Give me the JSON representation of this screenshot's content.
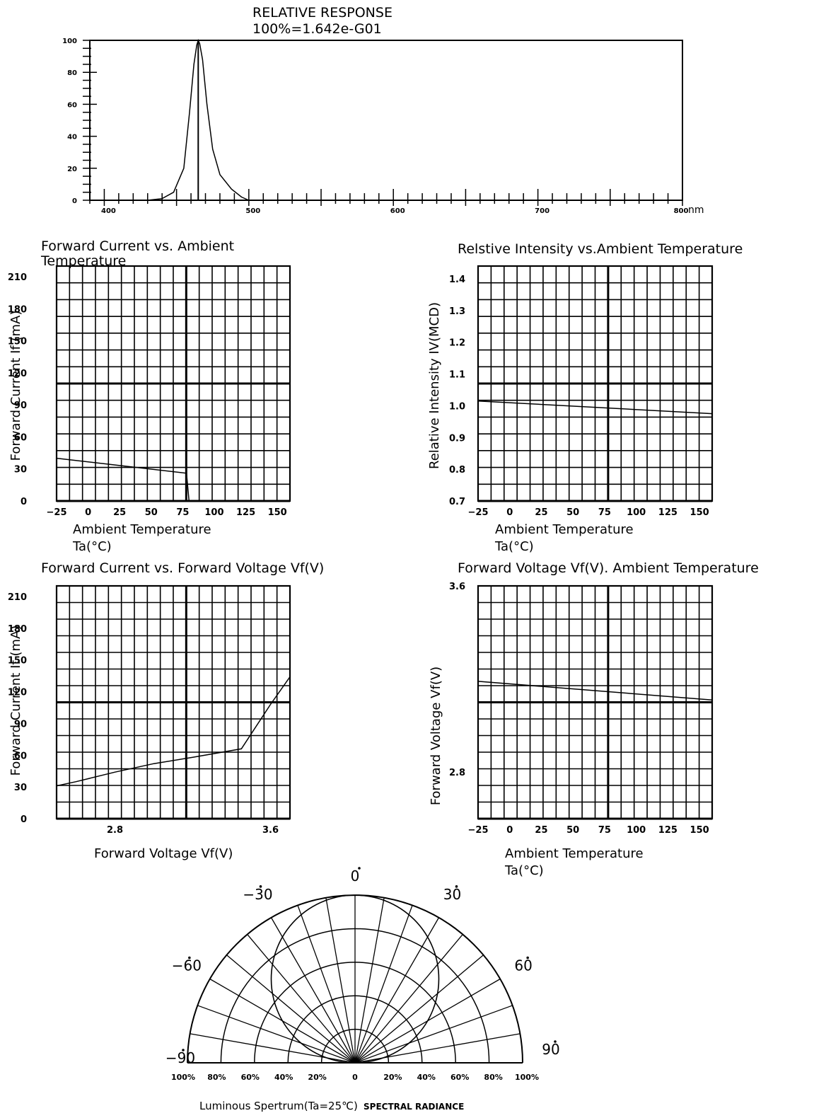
{
  "chart_data": [
    {
      "id": "spectrum",
      "type": "line",
      "title": "RELATIVE RESPONSE",
      "subtitle": "100%=1.642e-G01",
      "xunit": "nm",
      "xlim": [
        390,
        800
      ],
      "ylim": [
        0,
        100
      ],
      "xticks": [
        "400",
        "500",
        "600",
        "700",
        "800"
      ],
      "yticks": [
        "0",
        "20",
        "40",
        "60",
        "80",
        "100"
      ],
      "peak_x": 465,
      "series": [
        {
          "x": [
            430,
            440,
            448,
            455,
            459,
            462,
            464,
            465,
            466,
            468,
            471,
            475,
            480,
            488,
            495,
            500
          ],
          "y": [
            0,
            1,
            5,
            20,
            55,
            85,
            97,
            100,
            98,
            88,
            60,
            32,
            16,
            7,
            2,
            0
          ]
        }
      ]
    },
    {
      "id": "if-vs-ta",
      "type": "line",
      "title": "Forward Current vs. Ambient Temperature",
      "xlabel": "Ambient Temperature",
      "xlabel2": "Ta(°C)",
      "ylabel": "Forward Current If (mA)",
      "xlim": [
        -25,
        160
      ],
      "ylim": [
        0,
        220
      ],
      "xticks": [
        -25,
        0,
        25,
        50,
        75,
        100,
        125,
        150
      ],
      "yticks": [
        0,
        30,
        60,
        90,
        120,
        150,
        180,
        210
      ],
      "series": [
        {
          "x": [
            -25,
            78,
            80
          ],
          "y": [
            40,
            26,
            0
          ]
        }
      ]
    },
    {
      "id": "iv-vs-ta",
      "type": "line",
      "title": "Relstive Intensity vs.Ambient Temperature",
      "xlabel": "Ambient Temperature",
      "xlabel2": "Ta(°C)",
      "ylabel": "Relative Intensity IV(MCD)",
      "xlim": [
        -25,
        160
      ],
      "ylim": [
        0.7,
        1.44
      ],
      "xticks": [
        -25,
        0,
        25,
        50,
        75,
        100,
        125,
        150
      ],
      "yticks": [
        0.7,
        0.8,
        0.9,
        1.0,
        1.1,
        1.2,
        1.3,
        1.4
      ],
      "ytick_labels": [
        "0.7",
        "0.8",
        "0.9",
        "1.0",
        "1.1",
        "1.2",
        "1.3",
        "1.4"
      ],
      "series": [
        {
          "x": [
            -25,
            160
          ],
          "y": [
            1.015,
            0.975
          ]
        }
      ]
    },
    {
      "id": "if-vs-vf",
      "type": "line",
      "title": "Forward Current vs. Forward Voltage Vf(V)",
      "xlabel": "Forward Voltage Vf(V)",
      "ylabel": "Forward Current If (mA)",
      "xlim": [
        2.5,
        3.7
      ],
      "ylim": [
        0,
        220
      ],
      "xticks": [
        2.8,
        3.6
      ],
      "xtick_labels": [
        "2.8",
        "3.6"
      ],
      "yticks": [
        0,
        30,
        60,
        90,
        120,
        150,
        180,
        210
      ],
      "series": [
        {
          "x": [
            2.5,
            2.6,
            2.8,
            3.0,
            3.2,
            3.45,
            3.6,
            3.7
          ],
          "y": [
            31,
            35,
            44,
            52,
            58,
            66,
            108,
            134
          ]
        }
      ]
    },
    {
      "id": "vf-vs-ta",
      "type": "line",
      "title": "Forward Voltage Vf(V). Ambient Temperature",
      "xlabel": "Ambient Temperature",
      "xlabel2": "Ta(°C)",
      "ylabel": "Forward Voltage Vf(V)",
      "xlim": [
        -25,
        160
      ],
      "ylim": [
        2.6,
        3.6
      ],
      "xticks": [
        -25,
        0,
        25,
        50,
        75,
        100,
        125,
        150
      ],
      "yticks": [
        2.8,
        3.6
      ],
      "ytick_labels": [
        "2.8",
        "3.6"
      ],
      "series": [
        {
          "x": [
            -25,
            160
          ],
          "y": [
            3.19,
            3.11
          ]
        }
      ]
    },
    {
      "id": "polar",
      "type": "polar",
      "caption": "Luminous Spertrum(Ta=25℃)",
      "caption2": "SPECTRAL RADIANCE",
      "angle_labels": [
        "-90",
        "-60",
        "-30",
        "0",
        "30",
        "60",
        "90"
      ],
      "radial_labels": [
        "100%",
        "80%",
        "60%",
        "40%",
        "20%",
        "0",
        "20%",
        "40%",
        "60%",
        "80%",
        "100%"
      ]
    }
  ]
}
